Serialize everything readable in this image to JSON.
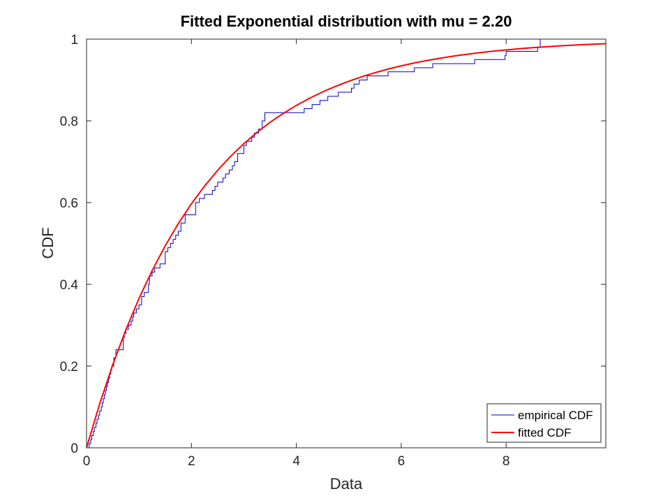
{
  "chart_data": {
    "type": "line",
    "title": "Fitted Exponential distribution with mu = 2.20",
    "xlabel": "Data",
    "ylabel": "CDF",
    "xlim": [
      0,
      9.9
    ],
    "ylim": [
      0,
      1
    ],
    "x_ticks": [
      0,
      2,
      4,
      6,
      8
    ],
    "x_tick_labels": [
      "0",
      "2",
      "4",
      "6",
      "8"
    ],
    "y_ticks": [
      0,
      0.2,
      0.4,
      0.6,
      0.8,
      1
    ],
    "y_tick_labels": [
      "0",
      "0.2",
      "0.4",
      "0.6",
      "0.8",
      "1"
    ],
    "grid": false,
    "legend_position": "bottom-right",
    "series": [
      {
        "name": "empirical CDF",
        "style": "step",
        "color": "#0000cc",
        "x": [
          0.05,
          0.08,
          0.1,
          0.13,
          0.15,
          0.18,
          0.2,
          0.23,
          0.25,
          0.28,
          0.3,
          0.32,
          0.34,
          0.36,
          0.38,
          0.4,
          0.42,
          0.44,
          0.46,
          0.48,
          0.52,
          0.56,
          0.7,
          0.72,
          0.75,
          0.8,
          0.85,
          0.88,
          0.9,
          0.95,
          1.0,
          1.05,
          1.1,
          1.18,
          1.2,
          1.25,
          1.3,
          1.4,
          1.5,
          1.55,
          1.6,
          1.65,
          1.7,
          1.75,
          1.8,
          1.88,
          2.08,
          2.15,
          2.25,
          2.4,
          2.45,
          2.5,
          2.6,
          2.65,
          2.72,
          2.78,
          2.82,
          2.88,
          3.0,
          3.05,
          3.15,
          3.2,
          3.28,
          3.35,
          3.4,
          4.15,
          4.3,
          4.45,
          4.6,
          4.8,
          5.05,
          5.1,
          5.2,
          5.35,
          5.75,
          6.25,
          6.6,
          7.4,
          7.98,
          8.0,
          8.6,
          8.65
        ],
        "y": [
          0.01,
          0.02,
          0.03,
          0.04,
          0.05,
          0.06,
          0.07,
          0.08,
          0.09,
          0.1,
          0.11,
          0.12,
          0.13,
          0.14,
          0.15,
          0.16,
          0.17,
          0.18,
          0.19,
          0.2,
          0.22,
          0.24,
          0.27,
          0.28,
          0.29,
          0.3,
          0.31,
          0.32,
          0.33,
          0.34,
          0.35,
          0.37,
          0.38,
          0.4,
          0.42,
          0.43,
          0.44,
          0.45,
          0.48,
          0.49,
          0.5,
          0.51,
          0.52,
          0.53,
          0.55,
          0.57,
          0.6,
          0.61,
          0.62,
          0.63,
          0.64,
          0.65,
          0.66,
          0.67,
          0.68,
          0.69,
          0.7,
          0.72,
          0.74,
          0.75,
          0.76,
          0.77,
          0.78,
          0.8,
          0.82,
          0.83,
          0.84,
          0.85,
          0.86,
          0.87,
          0.88,
          0.89,
          0.9,
          0.91,
          0.92,
          0.93,
          0.94,
          0.95,
          0.96,
          0.97,
          0.98,
          1.0
        ]
      },
      {
        "name": "fitted CDF",
        "style": "line",
        "color": "#ff0000",
        "mu": 2.2,
        "x": [
          0,
          0.25,
          0.5,
          0.75,
          1,
          1.25,
          1.5,
          1.75,
          2,
          2.25,
          2.5,
          2.75,
          3,
          3.25,
          3.5,
          3.75,
          4,
          4.25,
          4.5,
          4.75,
          5,
          5.25,
          5.5,
          5.75,
          6,
          6.25,
          6.5,
          6.75,
          7,
          7.25,
          7.5,
          7.75,
          8,
          8.25,
          8.5,
          8.75,
          9,
          9.25,
          9.5,
          9.75,
          9.9
        ],
        "y": [
          0,
          0.1074,
          0.2033,
          0.2889,
          0.3653,
          0.4334,
          0.4943,
          0.5486,
          0.5971,
          0.6404,
          0.6791,
          0.7136,
          0.7443,
          0.7718,
          0.7964,
          0.8182,
          0.8377,
          0.8552,
          0.8707,
          0.8846,
          0.897,
          0.908,
          0.9179,
          0.9267,
          0.9346,
          0.9416,
          0.9479,
          0.9535,
          0.9585,
          0.9629,
          0.9669,
          0.9705,
          0.9736,
          0.9764,
          0.979,
          0.9812,
          0.9833,
          0.9851,
          0.9867,
          0.9881,
          0.9889
        ]
      }
    ]
  }
}
